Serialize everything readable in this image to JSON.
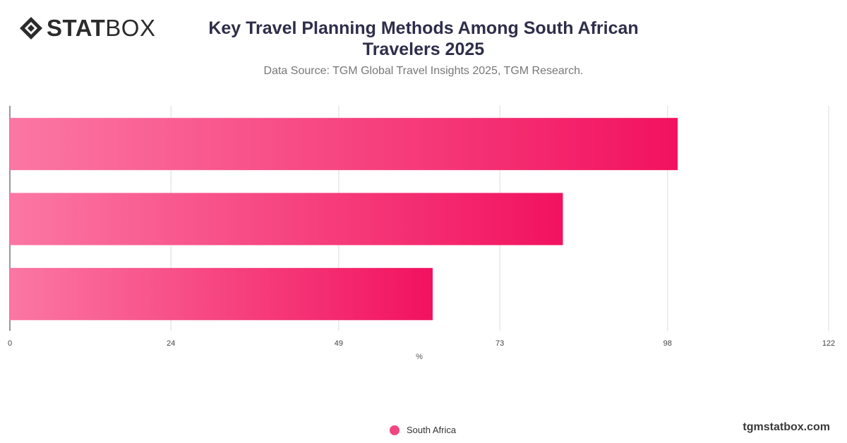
{
  "brand": {
    "name_bold": "STAT",
    "name_light": "BOX",
    "site": "tgmstatbox.com"
  },
  "title": "Key Travel Planning Methods Among South African Travelers 2025",
  "subtitle": "Data Source: TGM Global Travel Insights 2025, TGM Research.",
  "colors": {
    "bar_start": "#fb77a3",
    "bar_end": "#f2125f",
    "legend": "#f0457e",
    "title": "#2e2e4a"
  },
  "chart_data": {
    "type": "bar",
    "orientation": "horizontal",
    "categories": [
      "",
      "",
      ""
    ],
    "series": [
      {
        "name": "South Africa",
        "values": [
          99.5,
          82.4,
          63.0
        ]
      }
    ],
    "xlabel": "%",
    "xlim": [
      0,
      122
    ],
    "xticks": [
      0,
      24,
      49,
      73,
      98,
      122
    ],
    "grid": true,
    "legend_position": "bottom"
  }
}
